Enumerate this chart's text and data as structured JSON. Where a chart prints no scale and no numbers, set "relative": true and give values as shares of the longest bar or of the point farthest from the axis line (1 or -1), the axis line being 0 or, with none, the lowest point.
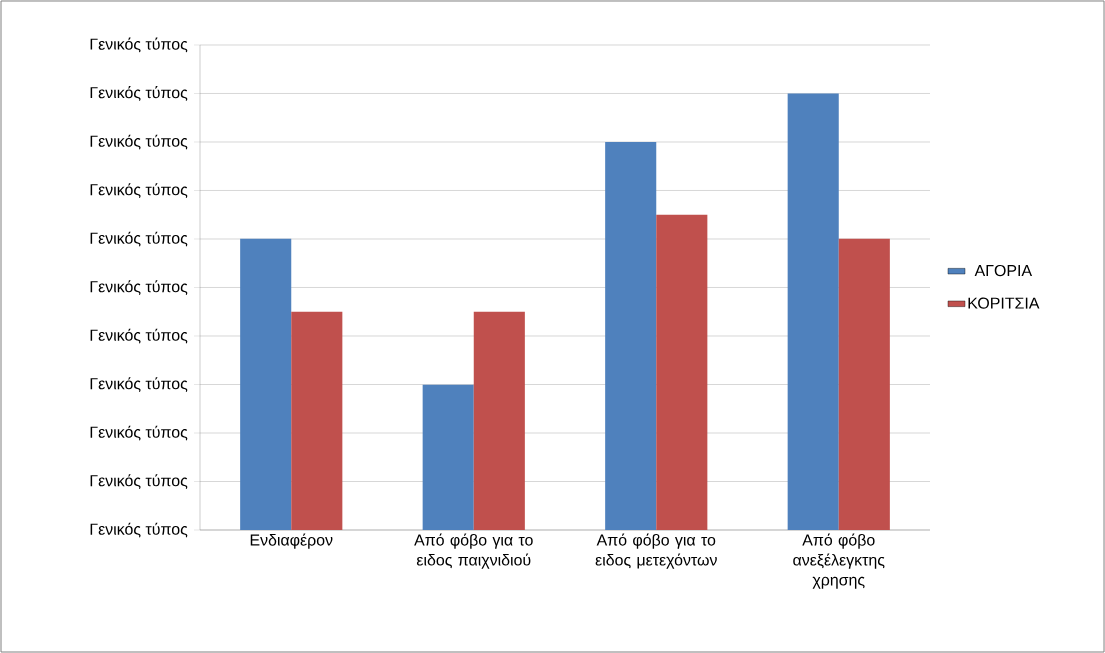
{
  "chart_data": {
    "type": "bar",
    "categories": [
      "Ενδιαφέρον",
      "Από φόβο για το ειδος παιχνιδιού",
      "Από φόβο για το ειδος μετεχόντων",
      "Από φόβο ανεξέλεγκτης χρησης"
    ],
    "series": [
      {
        "name": "ΑΓΟΡΙΑ",
        "color": "#4f81bd",
        "values": [
          0.667,
          0.333,
          0.889,
          1
        ]
      },
      {
        "name": "ΚΟΡΙΤΣΙΑ",
        "color": "#c0504d",
        "values": [
          0.5,
          0.5,
          0.722,
          0.667
        ]
      }
    ],
    "relative": true,
    "annotations": [
      "Γενικός τύπος",
      "Γενικός τύπος",
      "Γενικός τύπος",
      "Γενικός τύπος",
      "Γενικός τύπος",
      "Γενικός τύπος",
      "Γενικός τύπος",
      "Γενικός τύπος",
      "Γενικός τύπος",
      "Γενικός τύπος",
      "Γενικός τύπος"
    ],
    "grid": "y",
    "legend": "right"
  }
}
